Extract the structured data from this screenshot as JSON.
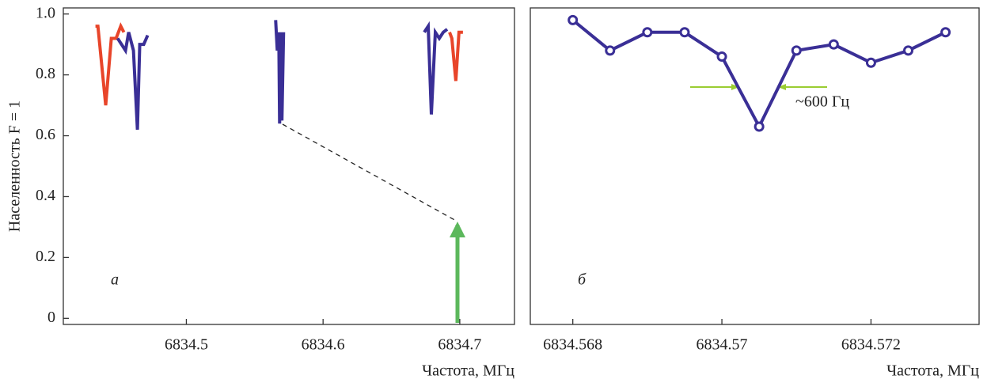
{
  "chart_data": [
    {
      "type": "line",
      "ylabel": "Населенность  F = 1",
      "xlabel": "Частота, МГц",
      "annotation": "а",
      "xlim": [
        6834.41,
        6834.74
      ],
      "ylim": [
        -0.02,
        1.02
      ],
      "xticks": [
        6834.5,
        6834.6,
        6834.7
      ],
      "yticks": [
        0,
        0.2,
        0.4,
        0.6,
        0.8,
        {
          "value": 1,
          "label": "1.0"
        }
      ],
      "series": [
        {
          "color": "#e8452a",
          "x": [
            6834.4335,
            6834.4353,
            6834.441,
            6834.4451,
            6834.4486,
            6834.452,
            6834.4543,
            null,
            6834.6925,
            6834.6942,
            6834.6971,
            6834.6994,
            6834.7023
          ],
          "values": [
            0.96,
            0.96,
            0.7,
            0.92,
            0.92,
            0.96,
            0.94,
            null,
            0.94,
            0.92,
            0.78,
            0.94,
            0.94
          ]
        },
        {
          "color": "#3a2f96",
          "x": [
            6834.4497,
            6834.4526,
            6834.4555,
            6834.4578,
            6834.4613,
            6834.4642,
            6834.4659,
            6834.4688,
            6834.4717,
            null,
            6834.5653,
            6834.5665,
            6834.5676,
            6834.5682,
            6834.5694,
            6834.5699,
            6834.5711,
            null,
            6834.674,
            6834.6769,
            6834.6792,
            6834.6821,
            6834.685,
            6834.6879,
            6834.6908
          ],
          "values": [
            0.92,
            0.9,
            0.88,
            0.94,
            0.88,
            0.62,
            0.9,
            0.9,
            0.93,
            null,
            0.98,
            0.88,
            0.94,
            0.64,
            0.94,
            0.65,
            0.94,
            null,
            0.94,
            0.96,
            0.67,
            0.94,
            0.92,
            0.94,
            0.95
          ]
        }
      ]
    },
    {
      "type": "line",
      "xlabel": "Частота, МГц",
      "annotation": "б",
      "width_label": "~600 Гц",
      "markers": true,
      "xlim": [
        6834.56743,
        6834.57345
      ],
      "ylim": [
        -0.02,
        1.02
      ],
      "xticks": [
        6834.568,
        6834.57,
        6834.572
      ],
      "series": [
        {
          "color": "#3a2f96",
          "x": [
            6834.568,
            6834.5685,
            6834.569,
            6834.5695,
            6834.57,
            6834.5705,
            6834.571,
            6834.5715,
            6834.572,
            6834.5725,
            6834.573
          ],
          "values": [
            0.98,
            0.88,
            0.94,
            0.94,
            0.86,
            0.63,
            0.88,
            0.9,
            0.84,
            0.88,
            0.94
          ]
        }
      ]
    }
  ]
}
